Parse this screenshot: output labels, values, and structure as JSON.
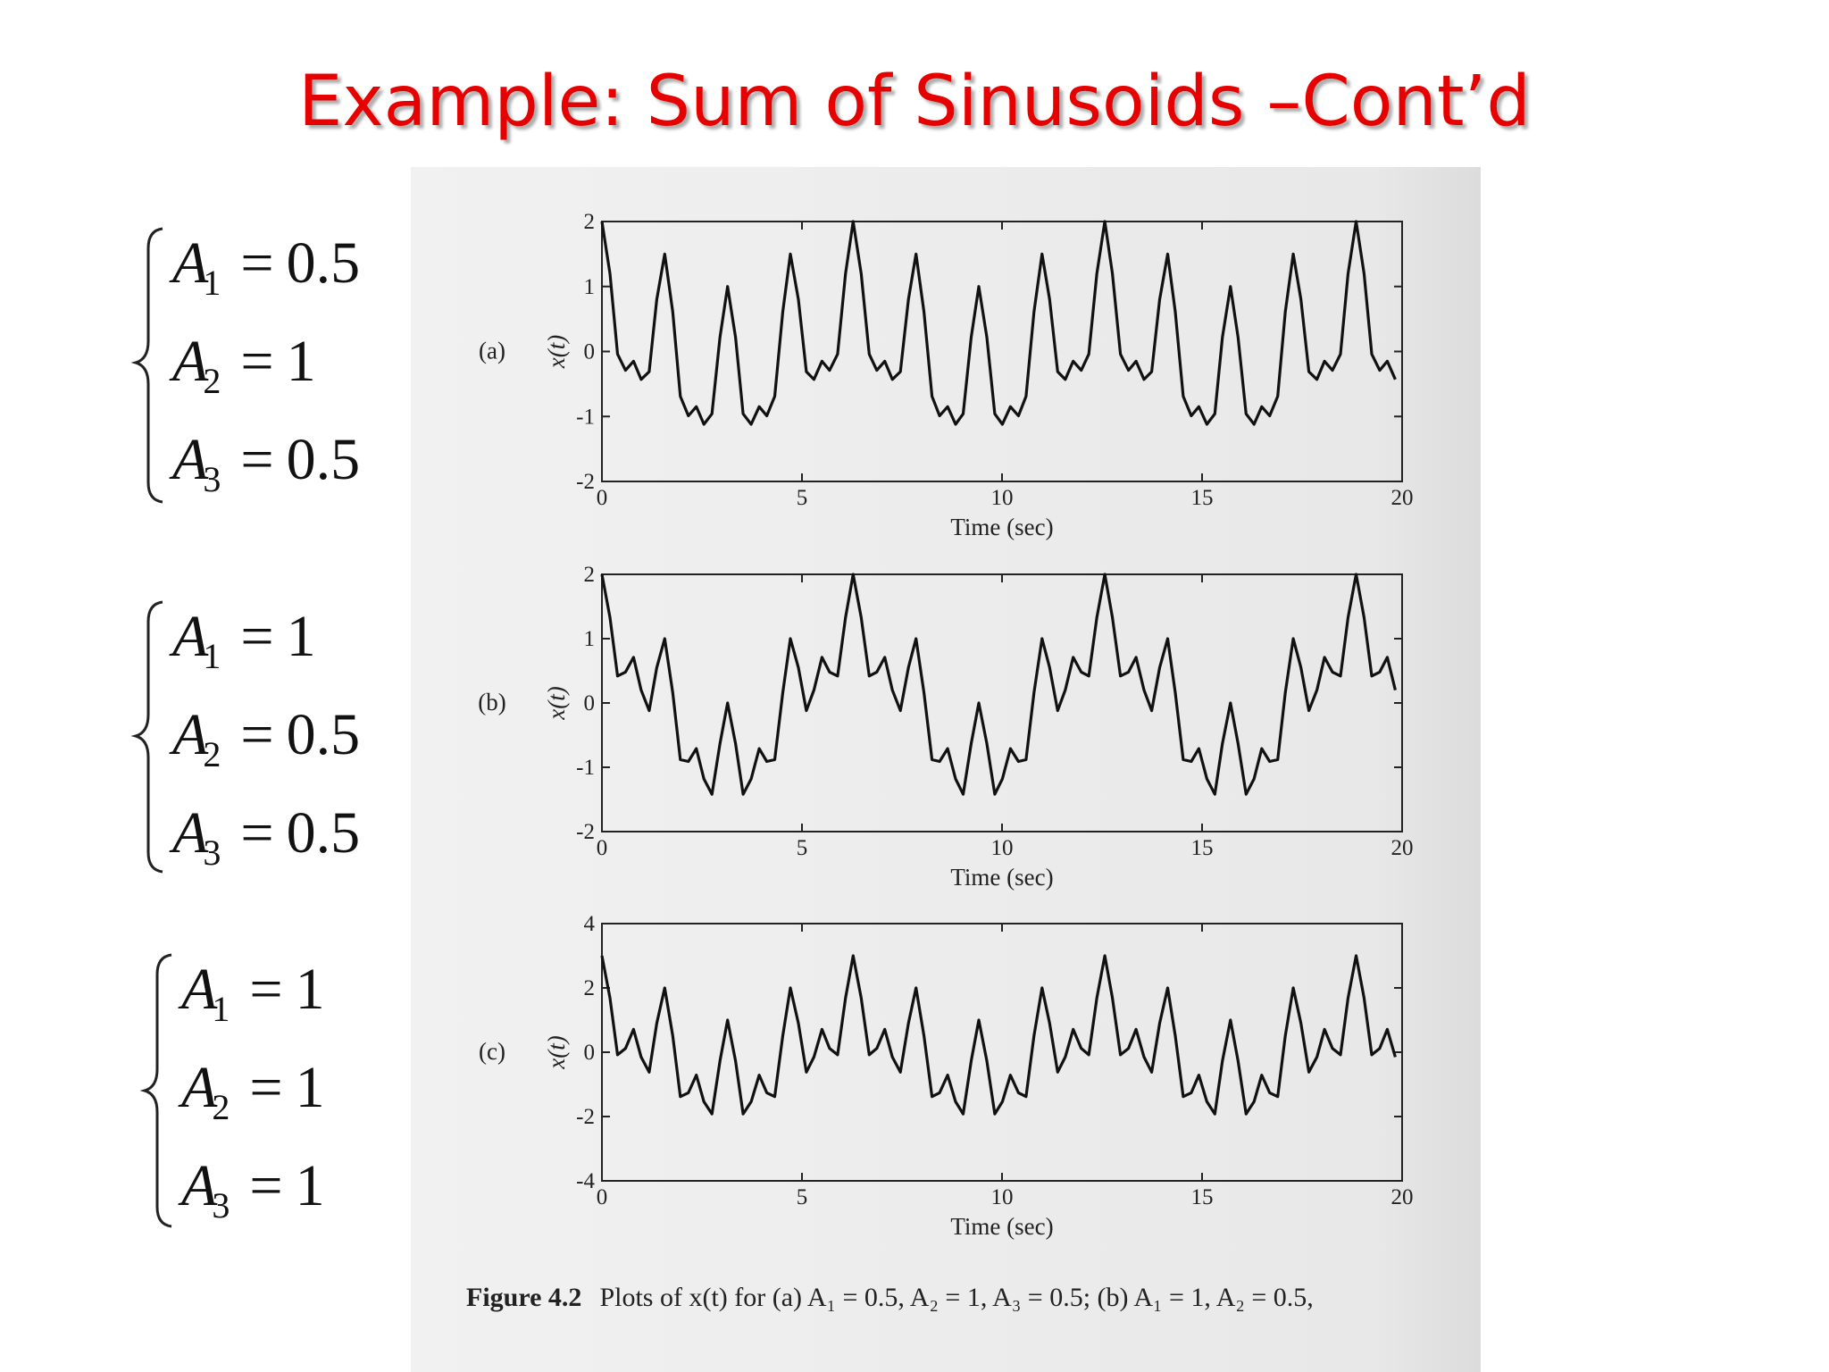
{
  "title": "Example: Sum of Sinusoids –Cont’d",
  "equations": [
    {
      "lines": [
        {
          "symbol": "A",
          "subscript": "1",
          "operator": "=",
          "value": 0.5
        },
        {
          "symbol": "A",
          "subscript": "2",
          "operator": "=",
          "value": 1
        },
        {
          "symbol": "A",
          "subscript": "3",
          "operator": "=",
          "value": 0.5
        }
      ]
    },
    {
      "lines": [
        {
          "symbol": "A",
          "subscript": "1",
          "operator": "=",
          "value": 1
        },
        {
          "symbol": "A",
          "subscript": "2",
          "operator": "=",
          "value": 0.5
        },
        {
          "symbol": "A",
          "subscript": "3",
          "operator": "=",
          "value": 0.5
        }
      ]
    },
    {
      "lines": [
        {
          "symbol": "A",
          "subscript": "1",
          "operator": "=",
          "value": 1
        },
        {
          "symbol": "A",
          "subscript": "2",
          "operator": "=",
          "value": 1
        },
        {
          "symbol": "A",
          "subscript": "3",
          "operator": "=",
          "value": 1
        }
      ]
    }
  ],
  "caption": {
    "label": "Figure 4.2",
    "text": "Plots of x(t) for (a) A₁ = 0.5, A₂ = 1, A₃ = 0.5; (b) A₁ = 1, A₂ = 0.5,"
  },
  "chart_data": [
    {
      "type": "line",
      "panel_label": "(a)",
      "xlabel": "Time (sec)",
      "ylabel": "x(t)",
      "color": "#111111",
      "xlim": [
        0,
        20
      ],
      "xticks": [
        0,
        5,
        10,
        15,
        20
      ],
      "ylim": [
        -2,
        2
      ],
      "yticks": [
        -2,
        -1,
        0,
        1,
        2
      ],
      "x": [
        0,
        0.2,
        0.39,
        0.59,
        0.79,
        0.98,
        1.18,
        1.37,
        1.57,
        1.77,
        1.96,
        2.16,
        2.36,
        2.55,
        2.75,
        2.95,
        3.14,
        3.34,
        3.53,
        3.73,
        3.93,
        4.12,
        4.32,
        4.52,
        4.71,
        4.91,
        5.11,
        5.3,
        5.5,
        5.69,
        5.89,
        6.09,
        6.28,
        6.48,
        6.68,
        6.87,
        7.07,
        7.26,
        7.46,
        7.66,
        7.85,
        8.05,
        8.25,
        8.44,
        8.64,
        8.84,
        9.03,
        9.23,
        9.42,
        9.62,
        9.82,
        10.01,
        10.21,
        10.41,
        10.6,
        10.8,
        11,
        11.19,
        11.39,
        11.58,
        11.78,
        11.98,
        12.17,
        12.37,
        12.57,
        12.76,
        12.96,
        13.16,
        13.35,
        13.55,
        13.74,
        13.94,
        14.14,
        14.33,
        14.53,
        14.73,
        14.92,
        15.12,
        15.32,
        15.51,
        15.71,
        15.9,
        16.1,
        16.3,
        16.49,
        16.69,
        16.89,
        17.08,
        17.28,
        17.47,
        17.67,
        17.87,
        18.06,
        18.26,
        18.46,
        18.65,
        18.85,
        19.05,
        19.24,
        19.44,
        19.63,
        19.83
      ],
      "values": [
        2,
        1.2,
        -0.04,
        -0.29,
        -0.15,
        -0.43,
        -0.31,
        0.8,
        1.5,
        0.61,
        -0.69,
        -0.99,
        -0.85,
        -1.12,
        -0.96,
        0.22,
        1,
        0.22,
        -0.96,
        -1.12,
        -0.85,
        -0.99,
        -0.69,
        0.61,
        1.5,
        0.8,
        -0.31,
        -0.43,
        -0.15,
        -0.29,
        -0.04,
        1.2,
        2,
        1.2,
        -0.04,
        -0.29,
        -0.15,
        -0.43,
        -0.31,
        0.8,
        1.5,
        0.61,
        -0.69,
        -0.99,
        -0.85,
        -1.12,
        -0.96,
        0.22,
        1,
        0.22,
        -0.96,
        -1.12,
        -0.85,
        -0.99,
        -0.69,
        0.61,
        1.5,
        0.8,
        -0.31,
        -0.43,
        -0.15,
        -0.29,
        -0.04,
        1.2,
        2,
        1.2,
        -0.04,
        -0.29,
        -0.15,
        -0.43,
        -0.31,
        0.8,
        1.5,
        0.61,
        -0.69,
        -0.99,
        -0.85,
        -1.12,
        -0.96,
        0.22,
        1,
        0.22,
        -0.96,
        -1.12,
        -0.85,
        -0.99,
        -0.69,
        0.61,
        1.5,
        0.8,
        -0.31,
        -0.43,
        -0.15,
        -0.29,
        -0.04,
        1.2,
        2,
        1.2,
        -0.04,
        -0.29,
        -0.15,
        -0.43
      ]
    },
    {
      "type": "line",
      "panel_label": "(b)",
      "xlabel": "Time (sec)",
      "ylabel": "x(t)",
      "color": "#111111",
      "xlim": [
        0,
        20
      ],
      "xticks": [
        0,
        5,
        10,
        15,
        20
      ],
      "ylim": [
        -2,
        2
      ],
      "yticks": [
        -2,
        -1,
        0,
        1,
        2
      ],
      "x": [
        0,
        0.2,
        0.39,
        0.59,
        0.79,
        0.98,
        1.18,
        1.37,
        1.57,
        1.77,
        1.96,
        2.16,
        2.36,
        2.55,
        2.75,
        2.95,
        3.14,
        3.34,
        3.53,
        3.73,
        3.93,
        4.12,
        4.32,
        4.52,
        4.71,
        4.91,
        5.11,
        5.3,
        5.5,
        5.69,
        5.89,
        6.09,
        6.28,
        6.48,
        6.68,
        6.87,
        7.07,
        7.26,
        7.46,
        7.66,
        7.85,
        8.05,
        8.25,
        8.44,
        8.64,
        8.84,
        9.03,
        9.23,
        9.42,
        9.62,
        9.82,
        10.01,
        10.21,
        10.41,
        10.6,
        10.8,
        11,
        11.19,
        11.39,
        11.58,
        11.78,
        11.98,
        12.17,
        12.37,
        12.57,
        12.76,
        12.96,
        13.16,
        13.35,
        13.55,
        13.74,
        13.94,
        14.14,
        14.33,
        14.53,
        14.73,
        14.92,
        15.12,
        15.32,
        15.51,
        15.71,
        15.9,
        16.1,
        16.3,
        16.49,
        16.69,
        16.89,
        17.08,
        17.28,
        17.47,
        17.67,
        17.87,
        18.06,
        18.26,
        18.46,
        18.65,
        18.85,
        19.05,
        19.24,
        19.44,
        19.63,
        19.83
      ],
      "values": [
        2,
        1.33,
        0.42,
        0.48,
        0.71,
        0.2,
        -0.12,
        0.55,
        1,
        0.16,
        -0.88,
        -0.91,
        -0.71,
        -1.18,
        -1.42,
        -0.63,
        0,
        -0.63,
        -1.42,
        -1.18,
        -0.71,
        -0.91,
        -0.88,
        0.16,
        1,
        0.55,
        -0.12,
        0.2,
        0.71,
        0.48,
        0.42,
        1.33,
        2,
        1.33,
        0.42,
        0.48,
        0.71,
        0.2,
        -0.12,
        0.55,
        1,
        0.16,
        -0.88,
        -0.91,
        -0.71,
        -1.18,
        -1.42,
        -0.63,
        0,
        -0.63,
        -1.42,
        -1.18,
        -0.71,
        -0.91,
        -0.88,
        0.16,
        1,
        0.55,
        -0.12,
        0.2,
        0.71,
        0.48,
        0.42,
        1.33,
        2,
        1.33,
        0.42,
        0.48,
        0.71,
        0.2,
        -0.12,
        0.55,
        1,
        0.16,
        -0.88,
        -0.91,
        -0.71,
        -1.18,
        -1.42,
        -0.63,
        0,
        -0.63,
        -1.42,
        -1.18,
        -0.71,
        -0.91,
        -0.88,
        0.16,
        1,
        0.55,
        -0.12,
        0.2,
        0.71,
        0.48,
        0.42,
        1.33,
        2,
        1.33,
        0.42,
        0.48,
        0.71,
        0.2
      ]
    },
    {
      "type": "line",
      "panel_label": "(c)",
      "xlabel": "Time (sec)",
      "ylabel": "x(t)",
      "color": "#111111",
      "xlim": [
        0,
        20
      ],
      "xticks": [
        0,
        5,
        10,
        15,
        20
      ],
      "ylim": [
        -4,
        4
      ],
      "yticks": [
        -4,
        -2,
        0,
        2,
        4
      ],
      "x": [
        0,
        0.2,
        0.39,
        0.59,
        0.79,
        0.98,
        1.18,
        1.37,
        1.57,
        1.77,
        1.96,
        2.16,
        2.36,
        2.55,
        2.75,
        2.95,
        3.14,
        3.34,
        3.53,
        3.73,
        3.93,
        4.12,
        4.32,
        4.52,
        4.71,
        4.91,
        5.11,
        5.3,
        5.5,
        5.69,
        5.89,
        6.09,
        6.28,
        6.48,
        6.68,
        6.87,
        7.07,
        7.26,
        7.46,
        7.66,
        7.85,
        8.05,
        8.25,
        8.44,
        8.64,
        8.84,
        9.03,
        9.23,
        9.42,
        9.62,
        9.82,
        10.01,
        10.21,
        10.41,
        10.6,
        10.8,
        11,
        11.19,
        11.39,
        11.58,
        11.78,
        11.98,
        12.17,
        12.37,
        12.57,
        12.76,
        12.96,
        13.16,
        13.35,
        13.55,
        13.74,
        13.94,
        14.14,
        14.33,
        14.53,
        14.73,
        14.92,
        15.12,
        15.32,
        15.51,
        15.71,
        15.9,
        16.1,
        16.3,
        16.49,
        16.69,
        16.89,
        17.08,
        17.28,
        17.47,
        17.67,
        17.87,
        18.06,
        18.26,
        18.46,
        18.65,
        18.85,
        19.05,
        19.24,
        19.44,
        19.63,
        19.83
      ],
      "values": [
        3,
        1.69,
        -0.08,
        0.12,
        0.71,
        -0.15,
        -0.62,
        0.9,
        2,
        0.51,
        -1.38,
        -1.26,
        -0.71,
        -1.54,
        -1.92,
        -0.27,
        1,
        -0.27,
        -1.92,
        -1.54,
        -0.71,
        -1.26,
        -1.38,
        0.51,
        2,
        0.9,
        -0.62,
        -0.15,
        0.71,
        0.12,
        -0.08,
        1.69,
        3,
        1.69,
        -0.08,
        0.12,
        0.71,
        -0.15,
        -0.62,
        0.9,
        2,
        0.51,
        -1.38,
        -1.26,
        -0.71,
        -1.54,
        -1.92,
        -0.27,
        1,
        -0.27,
        -1.92,
        -1.54,
        -0.71,
        -1.26,
        -1.38,
        0.51,
        2,
        0.9,
        -0.62,
        -0.15,
        0.71,
        0.12,
        -0.08,
        1.69,
        3,
        1.69,
        -0.08,
        0.12,
        0.71,
        -0.15,
        -0.62,
        0.9,
        2,
        0.51,
        -1.38,
        -1.26,
        -0.71,
        -1.54,
        -1.92,
        -0.27,
        1,
        -0.27,
        -1.92,
        -1.54,
        -0.71,
        -1.26,
        -1.38,
        0.51,
        2,
        0.9,
        -0.62,
        -0.15,
        0.71,
        0.12,
        -0.08,
        1.69,
        3,
        1.69,
        -0.08,
        0.12,
        0.71,
        -0.15
      ]
    }
  ]
}
